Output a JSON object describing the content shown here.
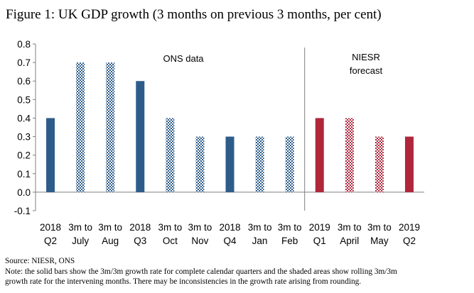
{
  "figure_title": "Figure 1: UK GDP growth (3 months on previous 3 months, per cent)",
  "source": "Source: NIESR, ONS",
  "note_line1": "Note: the solid bars show the 3m/3m growth rate for complete calendar quarters and the shaded areas show rolling 3m/3m",
  "note_line2": "growth rate for the intervening months. There may be inconsistencies in the growth rate arising from rounding.",
  "annotations": {
    "ons": "ONS data",
    "niesr_line1": "NIESR",
    "niesr_line2": "forecast"
  },
  "colors": {
    "ons_solid": "#2E5C8A",
    "ons_shaded": "#2E5C8A",
    "niesr_solid": "#B0263B",
    "niesr_shaded": "#B0263B"
  },
  "chart_data": {
    "type": "bar",
    "ylim": [
      -0.1,
      0.8
    ],
    "yticks": [
      "0.8",
      "0.7",
      "0.6",
      "0.5",
      "0.4",
      "0.3",
      "0.2",
      "0.1",
      "0.0",
      "-0.1"
    ],
    "grid": false,
    "categories": [
      [
        "2018",
        "Q2"
      ],
      [
        "3m to",
        "July"
      ],
      [
        "3m to",
        "Aug"
      ],
      [
        "2018",
        "Q3"
      ],
      [
        "3m to",
        "Oct"
      ],
      [
        "3m to",
        "Nov"
      ],
      [
        "2018",
        "Q4"
      ],
      [
        "3m to",
        "Jan"
      ],
      [
        "3m to",
        "Feb"
      ],
      [
        "2019",
        "Q1"
      ],
      [
        "3m to",
        "April"
      ],
      [
        "3m to",
        "May"
      ],
      [
        "2019",
        "Q2"
      ]
    ],
    "values": [
      0.4,
      0.7,
      0.7,
      0.6,
      0.4,
      0.3,
      0.3,
      0.3,
      0.3,
      0.4,
      0.4,
      0.3,
      0.3
    ],
    "group": [
      "ons",
      "ons",
      "ons",
      "ons",
      "ons",
      "ons",
      "ons",
      "ons",
      "ons",
      "niesr",
      "niesr",
      "niesr",
      "niesr"
    ],
    "style": [
      "solid",
      "shaded",
      "shaded",
      "solid",
      "shaded",
      "shaded",
      "solid",
      "shaded",
      "shaded",
      "solid",
      "shaded",
      "shaded",
      "solid"
    ]
  }
}
